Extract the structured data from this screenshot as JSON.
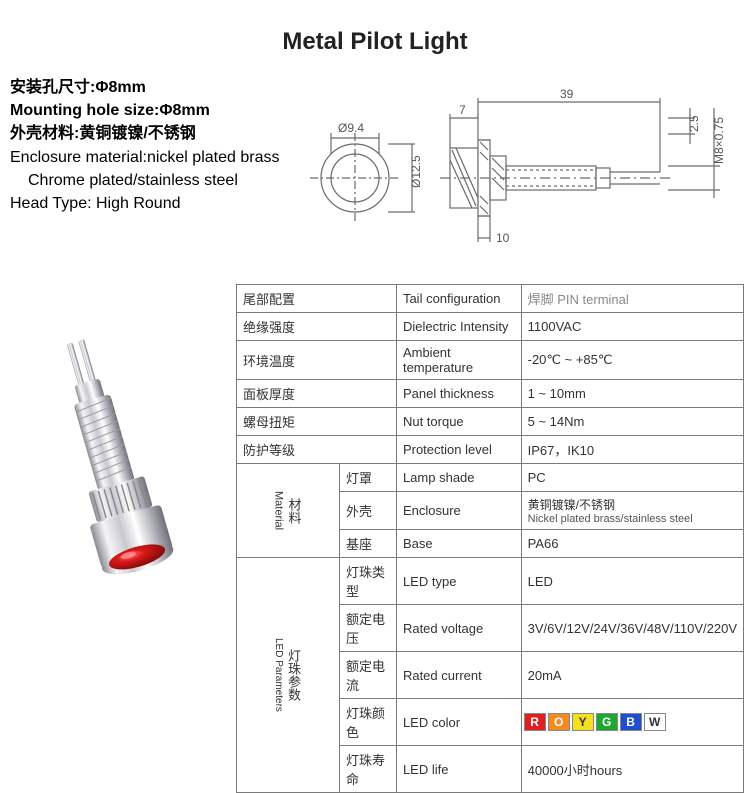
{
  "title": "Metal Pilot Light",
  "specs": {
    "line1_cn": "安装孔尺寸:Φ8mm",
    "line2_en": "Mounting hole size:Φ8mm",
    "line3_cn": "外壳材料:黄铜镀镍/不锈钢",
    "line4_en": "Enclosure material:nickel plated brass",
    "line5_en": "Chrome plated/stainless steel",
    "line6_en": "Head Type: High Round"
  },
  "diagram": {
    "diam_head": "Ø9.4",
    "diam_flange": "Ø12.5",
    "len_flange": "7",
    "len_total": "39",
    "shoulder": "2.5",
    "thread": "M8×0.75",
    "base_w": "10",
    "stroke": "#6a6a6a"
  },
  "table": {
    "rows": [
      {
        "cn": "尾部配置",
        "en": "Tail configuration",
        "val": "焊脚  PIN terminal",
        "valColor": "#888"
      },
      {
        "cn": "绝缘强度",
        "en": "Dielectric Intensity",
        "val": "1100VAC"
      },
      {
        "cn": "环境温度",
        "en": "Ambient temperature",
        "val": "-20℃ ~ +85℃"
      },
      {
        "cn": "面板厚度",
        "en": "Panel thickness",
        "val": "1 ~ 10mm"
      },
      {
        "cn": "螺母扭矩",
        "en": "Nut torque",
        "val": "5 ~ 14Nm"
      },
      {
        "cn": "防护等级",
        "en": "Protection level",
        "val": "IP67，IK10"
      }
    ],
    "material_label_cn": "材料",
    "material_label_en": "Material",
    "material": [
      {
        "cn": "灯罩",
        "en": "Lamp shade",
        "val": "PC"
      },
      {
        "cn": "外壳",
        "en": "Enclosure",
        "val_cn": "黄铜镀镍/不锈钢",
        "val_en": "Nickel plated brass/stainless steel"
      },
      {
        "cn": "基座",
        "en": "Base",
        "val": "PA66"
      }
    ],
    "led_label_cn": "灯珠参数",
    "led_label_en": "LED Parameters",
    "led": [
      {
        "cn": "灯珠类型",
        "en": "LED type",
        "val": "LED"
      },
      {
        "cn": "额定电压",
        "en": "Rated voltage",
        "val": "3V/6V/12V/24V/36V/48V/110V/220V"
      },
      {
        "cn": "额定电流",
        "en": "Rated current",
        "val": "20mA"
      },
      {
        "cn": "灯珠颜色",
        "en": "LED color"
      },
      {
        "cn": "灯珠寿命",
        "en": "LED life",
        "val": "40000小时hours"
      }
    ],
    "led_colors": [
      {
        "letter": "R",
        "bg": "#e02020",
        "fg": "#ffffff"
      },
      {
        "letter": "O",
        "bg": "#f58a1f",
        "fg": "#ffffff"
      },
      {
        "letter": "Y",
        "bg": "#f5e01f",
        "fg": "#333333"
      },
      {
        "letter": "G",
        "bg": "#1fa82f",
        "fg": "#ffffff"
      },
      {
        "letter": "B",
        "bg": "#1f4fd0",
        "fg": "#ffffff"
      },
      {
        "letter": "W",
        "bg": "#ffffff",
        "fg": "#333333"
      }
    ]
  },
  "product": {
    "body_color": "#e8e8ec",
    "body_hl": "#ffffff",
    "body_shadow": "#9a9aa0",
    "lens_color": "#c81818",
    "lens_hl": "#ff5a5a"
  }
}
